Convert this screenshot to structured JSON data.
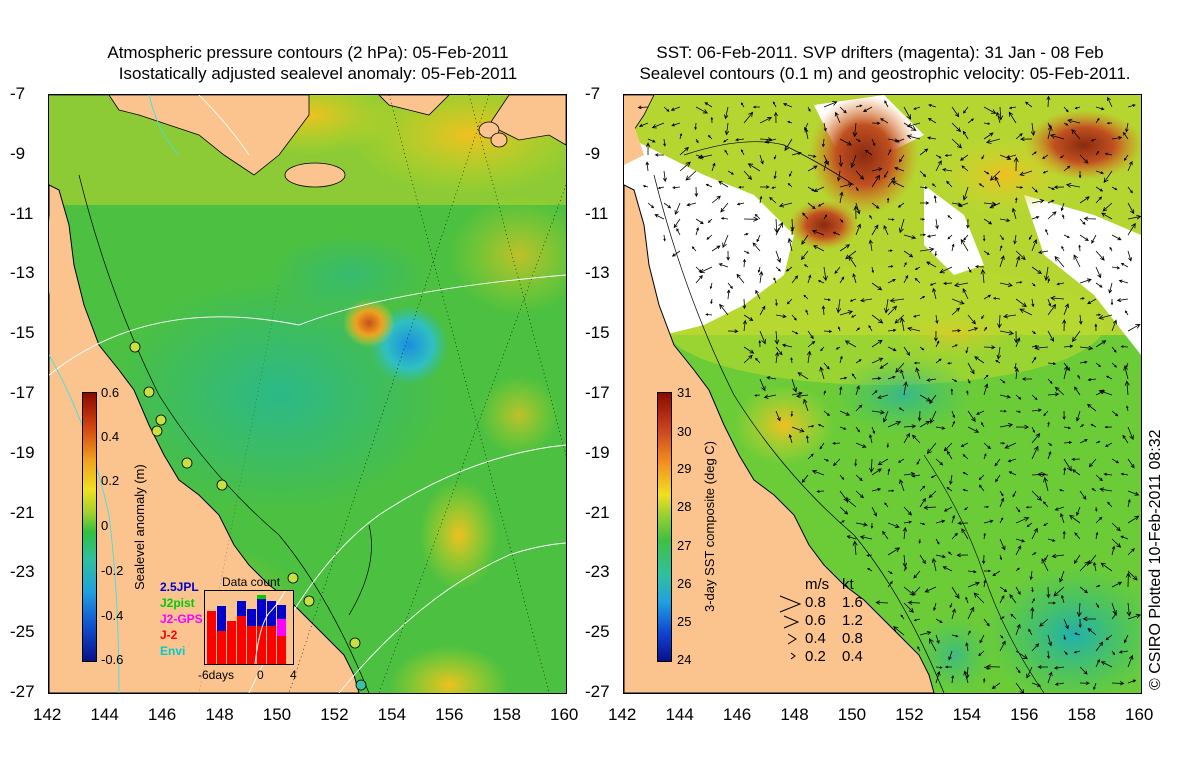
{
  "left_panel": {
    "title_line1": "Atmospheric pressure contours (2 hPa): 05-Feb-2011",
    "title_line2": "Isostatically adjusted sealevel anomaly: 05-Feb-2011",
    "colorbar_title": "Sealevel anomaly (m)",
    "colorbar_labels": [
      "0.6",
      "0.4",
      "0.2",
      "0",
      "-0.2",
      "-0.4",
      "-0.6"
    ],
    "inset": {
      "title": "Data count",
      "satellites": [
        {
          "name": "2.5JPL",
          "color": "#0000cc"
        },
        {
          "name": "J2pist",
          "color": "#00cc00"
        },
        {
          "name": "J2-GPS",
          "color": "#ff00ff"
        },
        {
          "name": "J-2",
          "color": "#ff0000"
        },
        {
          "name": "Envi",
          "color": "#00cccc"
        }
      ],
      "axis_labels": [
        "-6days",
        "0",
        "4"
      ]
    }
  },
  "right_panel": {
    "title_line1": "SST: 06-Feb-2011. SVP drifters (magenta): 31 Jan - 08 Feb",
    "title_line2": "Sealevel contours (0.1 m) and geostrophic velocity: 05-Feb-2011.",
    "colorbar_title": "3-day SST composite (deg C)",
    "colorbar_labels": [
      "31",
      "30",
      "29",
      "28",
      "27",
      "26",
      "25",
      "24"
    ],
    "velocity_legend": {
      "header_ms": "m/s",
      "header_kt": "kt",
      "rows": [
        {
          "ms": "0.8",
          "kt": "1.6"
        },
        {
          "ms": "0.6",
          "kt": "1.2"
        },
        {
          "ms": "0.4",
          "kt": "0.8"
        },
        {
          "ms": "0.2",
          "kt": "0.4"
        }
      ]
    }
  },
  "axes": {
    "y_ticks": [
      "-7",
      "-9",
      "-11",
      "-13",
      "-15",
      "-17",
      "-19",
      "-21",
      "-23",
      "-25",
      "-27"
    ],
    "x_ticks": [
      "142",
      "144",
      "146",
      "148",
      "150",
      "152",
      "154",
      "156",
      "158",
      "160"
    ]
  },
  "copyright": "© CSIRO Plotted 10-Feb-2011 08:32",
  "colors": {
    "land": "#fbc48f",
    "ocean_mid": "#3cc040",
    "cloud": "#ffffff"
  }
}
